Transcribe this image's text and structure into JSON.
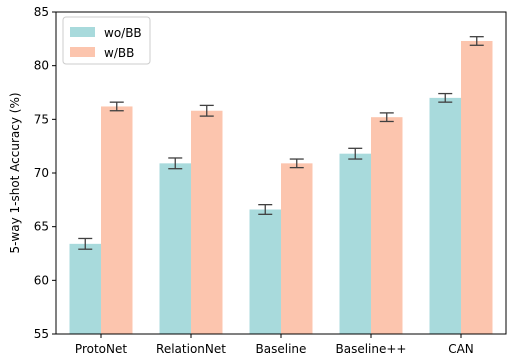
{
  "chart_data": {
    "type": "bar",
    "title": "",
    "xlabel": "",
    "ylabel": "5-way 1-shot Accuracy (%)",
    "ylim": [
      55,
      85
    ],
    "yticks": [
      55,
      60,
      65,
      70,
      75,
      80,
      85
    ],
    "categories": [
      "ProtoNet",
      "RelationNet",
      "Baseline",
      "Baseline++",
      "CAN"
    ],
    "series": [
      {
        "name": "wo/BB",
        "color": "#a8dadc",
        "values": [
          63.4,
          70.9,
          66.6,
          71.8,
          77.0
        ],
        "errors": [
          0.5,
          0.5,
          0.45,
          0.5,
          0.4
        ]
      },
      {
        "name": "w/BB",
        "color": "#fcc5ae",
        "values": [
          76.2,
          75.8,
          70.9,
          75.2,
          82.3
        ],
        "errors": [
          0.4,
          0.5,
          0.4,
          0.4,
          0.4
        ]
      }
    ],
    "grid": false,
    "legend_position": "top-left"
  }
}
